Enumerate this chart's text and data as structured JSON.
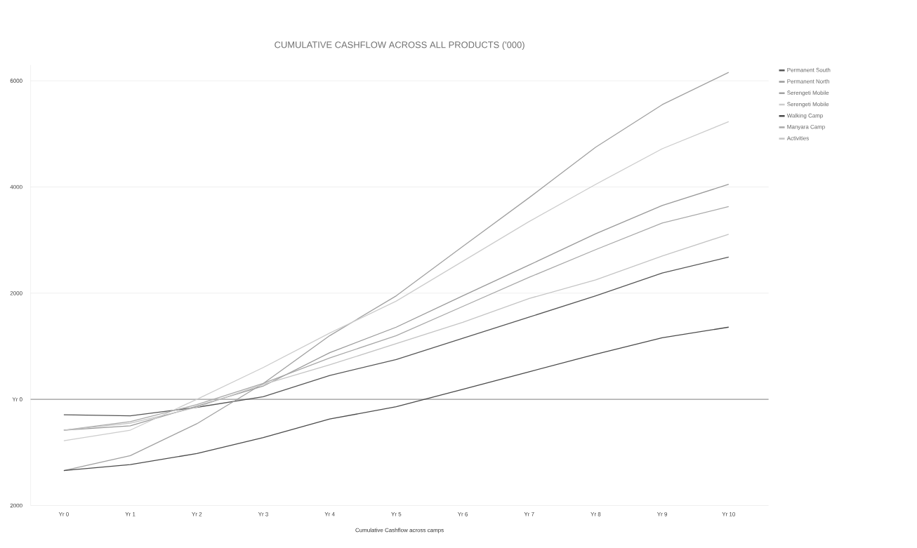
{
  "chart_data": {
    "type": "line",
    "title": "CUMULATIVE CASHFLOW ACROSS ALL PRODUCTS ('000)",
    "xlabel": "Cumulative Cashflow across camps",
    "categories": [
      "Yr 0",
      "Yr 1",
      "Yr 2",
      "Yr 3",
      "Yr 4",
      "Yr 5",
      "Yr 6",
      "Yr 7",
      "Yr 8",
      "Yr 9",
      "Yr 10"
    ],
    "series": [
      {
        "name": "Permanent South",
        "color": "#555555",
        "values": [
          -290,
          -310,
          -150,
          50,
          450,
          750,
          1150,
          1550,
          1950,
          2380,
          2680
        ]
      },
      {
        "name": "Permanent North",
        "color": "#999999",
        "values": [
          -580,
          -500,
          -130,
          250,
          880,
          1360,
          1950,
          2530,
          3120,
          3650,
          4050
        ]
      },
      {
        "name": "Serengeti Mobile",
        "color": "#a0a0a0",
        "values": [
          -1340,
          -1060,
          -460,
          300,
          1200,
          1950,
          2880,
          3800,
          4750,
          5550,
          6160
        ]
      },
      {
        "name": "Serengeti Mobile",
        "color": "#cccccc",
        "values": [
          -780,
          -580,
          0,
          600,
          1250,
          1850,
          2600,
          3350,
          4050,
          4720,
          5230
        ]
      },
      {
        "name": "Walking Camp",
        "color": "#4a4a4a",
        "values": [
          -1340,
          -1230,
          -1020,
          -720,
          -370,
          -140,
          190,
          520,
          850,
          1160,
          1360
        ]
      },
      {
        "name": "Manyara Camp",
        "color": "#a8a8a8",
        "values": [
          -580,
          -420,
          -100,
          300,
          780,
          1200,
          1750,
          2300,
          2820,
          3320,
          3630
        ]
      },
      {
        "name": "Activities",
        "color": "#c4c4c4",
        "values": [
          -580,
          -450,
          -150,
          280,
          650,
          1050,
          1450,
          1900,
          2250,
          2700,
          3110
        ]
      }
    ],
    "ylim": [
      -2000,
      6300
    ],
    "yticks": [
      {
        "value": -2000,
        "label": "2000"
      },
      {
        "value": 0,
        "label": "Yr 0"
      },
      2000,
      4000,
      6000
    ],
    "ref_lines": [
      {
        "axis": "y",
        "value": 0,
        "color": "#9a9a9a"
      }
    ],
    "grid": "y",
    "legend": "top right",
    "marker": "none",
    "line_style": "solid"
  }
}
